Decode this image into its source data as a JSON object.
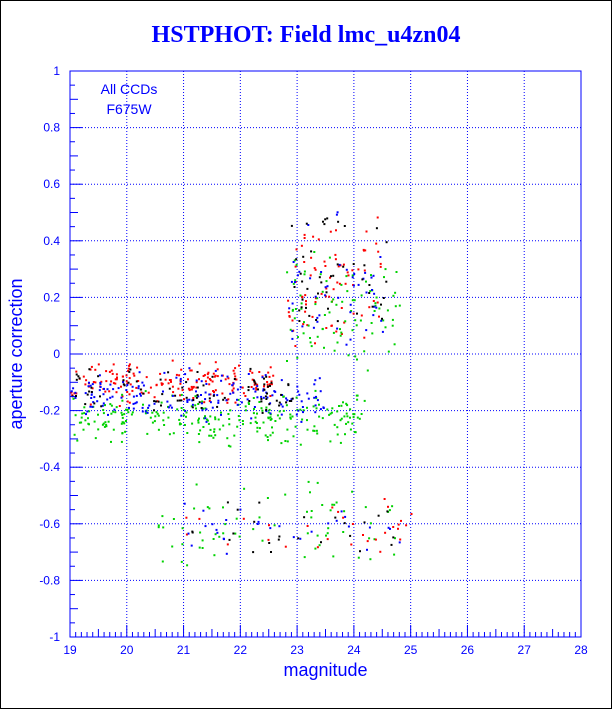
{
  "chart_data": {
    "type": "scatter",
    "title": "HSTPHOT: Field lmc_u4zn04",
    "xlabel": "magnitude",
    "ylabel": "aperture correction",
    "xlim": [
      19,
      28
    ],
    "ylim": [
      -1,
      1
    ],
    "x_ticks": [
      "19",
      "20",
      "21",
      "22",
      "23",
      "24",
      "25",
      "26",
      "27",
      "28"
    ],
    "y_ticks": [
      "-1",
      "-0.8",
      "-0.6",
      "-0.4",
      "-0.2",
      "0",
      "0.2",
      "0.4",
      "0.6",
      "0.8",
      "1"
    ],
    "grid": true,
    "grid_style": "dotted",
    "annotations": [
      "All CCDs",
      "F675W"
    ],
    "colors": {
      "axis": "#0000ff",
      "text": "#0000ff",
      "black": "#000000",
      "red": "#ff0000",
      "green": "#00d200",
      "blue": "#0000ff"
    },
    "point_groups": [
      {
        "color": "red",
        "x_range": [
          19.0,
          22.6
        ],
        "y_center": -0.1,
        "y_spread": 0.1,
        "count": 180
      },
      {
        "color": "green",
        "x_range": [
          19.0,
          24.2
        ],
        "y_center": -0.22,
        "y_spread": 0.12,
        "count": 260
      },
      {
        "color": "blue",
        "x_range": [
          19.0,
          23.5
        ],
        "y_center": -0.15,
        "y_spread": 0.12,
        "count": 170
      },
      {
        "color": "black",
        "x_range": [
          19.0,
          23.0
        ],
        "y_center": -0.14,
        "y_spread": 0.12,
        "count": 90
      },
      {
        "color": "red",
        "x_range": [
          22.8,
          24.5
        ],
        "y_center": 0.25,
        "y_spread": 0.35,
        "count": 80
      },
      {
        "color": "green",
        "x_range": [
          22.8,
          24.8
        ],
        "y_center": 0.15,
        "y_spread": 0.3,
        "count": 90
      },
      {
        "color": "blue",
        "x_range": [
          22.8,
          24.5
        ],
        "y_center": 0.2,
        "y_spread": 0.35,
        "count": 50
      },
      {
        "color": "black",
        "x_range": [
          22.8,
          24.6
        ],
        "y_center": 0.3,
        "y_spread": 0.35,
        "count": 45
      },
      {
        "color": "green",
        "x_range": [
          20.5,
          25.0
        ],
        "y_center": -0.6,
        "y_spread": 0.2,
        "count": 70
      },
      {
        "color": "red",
        "x_range": [
          21.0,
          25.0
        ],
        "y_center": -0.6,
        "y_spread": 0.15,
        "count": 30
      },
      {
        "color": "blue",
        "x_range": [
          21.0,
          24.8
        ],
        "y_center": -0.6,
        "y_spread": 0.18,
        "count": 30
      },
      {
        "color": "black",
        "x_range": [
          21.0,
          24.8
        ],
        "y_center": -0.6,
        "y_spread": 0.18,
        "count": 25
      }
    ]
  }
}
